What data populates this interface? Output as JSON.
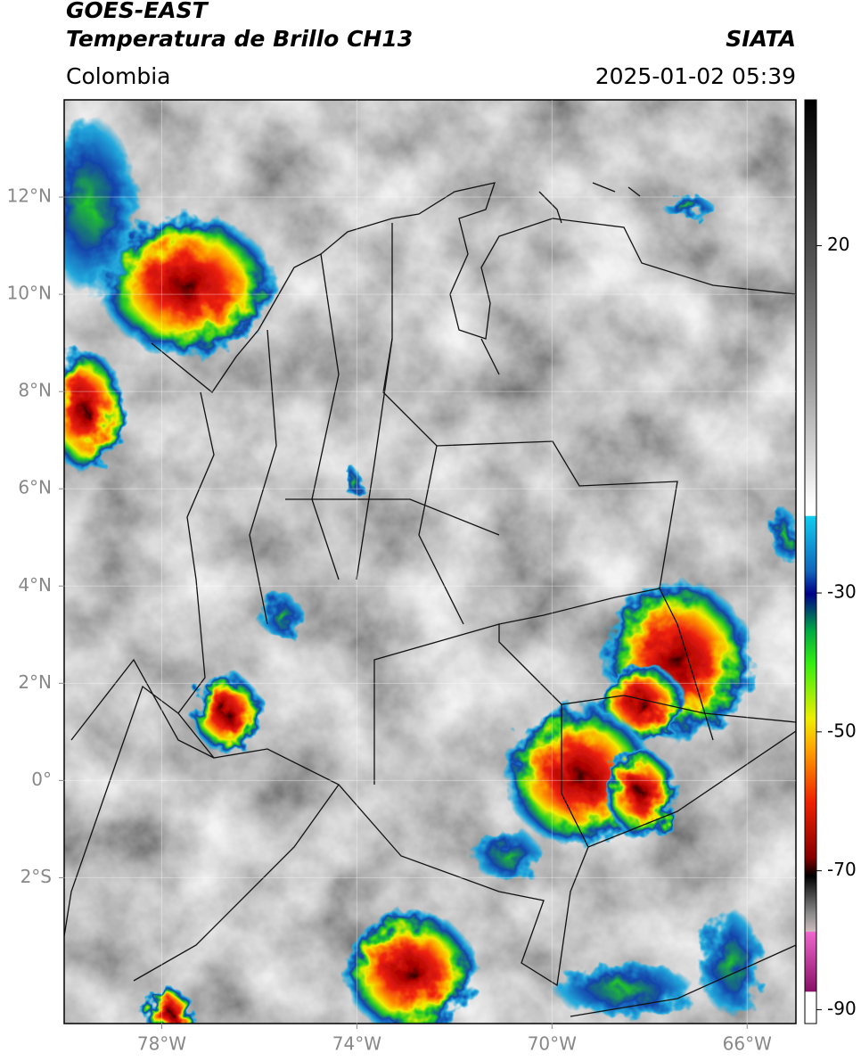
{
  "header": {
    "satellite": "GOES-EAST",
    "title": "Temperatura de Brillo CH13",
    "region": "Colombia",
    "source": "SIATA",
    "datetime": "2025-01-02 05:39"
  },
  "map": {
    "xlim": [
      -80,
      -65
    ],
    "ylim": [
      -5,
      14
    ],
    "xticks": [
      {
        "value": -78,
        "label": "78°W"
      },
      {
        "value": -74,
        "label": "74°W"
      },
      {
        "value": -70,
        "label": "70°W"
      },
      {
        "value": -66,
        "label": "66°W"
      }
    ],
    "yticks": [
      {
        "value": 12,
        "label": "12°N"
      },
      {
        "value": 10,
        "label": "10°N"
      },
      {
        "value": 8,
        "label": "8°N"
      },
      {
        "value": 6,
        "label": "6°N"
      },
      {
        "value": 4,
        "label": "4°N"
      },
      {
        "value": 2,
        "label": "2°N"
      },
      {
        "value": 0,
        "label": "0°"
      },
      {
        "value": -2,
        "label": "2°S"
      }
    ],
    "grid": true,
    "colorbar": {
      "lim": [
        -92,
        41
      ],
      "ticks": [
        20,
        -30,
        -50,
        -70,
        -90
      ]
    }
  }
}
